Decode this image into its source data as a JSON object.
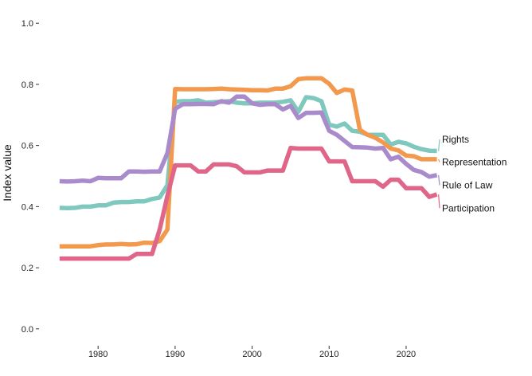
{
  "chart_data": {
    "type": "line",
    "title": "",
    "xlabel": "",
    "ylabel": "Index value",
    "xlim": [
      1974.5,
      2035
    ],
    "ylim": [
      -0.05,
      1.05
    ],
    "x_ticks": [
      1980,
      1990,
      2000,
      2010,
      2020
    ],
    "y_ticks": [
      0.0,
      0.2,
      0.4,
      0.6,
      0.8,
      1.0
    ],
    "y_tick_labels": [
      "0.0",
      "0.2",
      "0.4",
      "0.6",
      "0.8",
      "1.0"
    ],
    "grid": false,
    "legend": "direct labels at line ends (right)",
    "x": [
      1975,
      1976,
      1977,
      1978,
      1979,
      1980,
      1981,
      1982,
      1983,
      1984,
      1985,
      1986,
      1987,
      1988,
      1989,
      1990,
      1991,
      1992,
      1993,
      1994,
      1995,
      1996,
      1997,
      1998,
      1999,
      2000,
      2001,
      2002,
      2003,
      2004,
      2005,
      2006,
      2007,
      2008,
      2009,
      2010,
      2011,
      2012,
      2013,
      2014,
      2015,
      2016,
      2017,
      2018,
      2019,
      2020,
      2021,
      2022,
      2023,
      2024
    ],
    "series": [
      {
        "name": "Rights",
        "color": "#7ec8bd",
        "values": [
          0.396,
          0.395,
          0.396,
          0.4,
          0.4,
          0.404,
          0.404,
          0.413,
          0.415,
          0.415,
          0.417,
          0.417,
          0.425,
          0.43,
          0.47,
          0.743,
          0.745,
          0.745,
          0.748,
          0.74,
          0.742,
          0.743,
          0.745,
          0.74,
          0.738,
          0.738,
          0.74,
          0.74,
          0.74,
          0.743,
          0.748,
          0.71,
          0.758,
          0.755,
          0.745,
          0.668,
          0.662,
          0.672,
          0.648,
          0.645,
          0.635,
          0.635,
          0.635,
          0.603,
          0.612,
          0.607,
          0.596,
          0.588,
          0.583,
          0.582
        ]
      },
      {
        "name": "Representation",
        "color": "#f2994e",
        "values": [
          0.27,
          0.27,
          0.27,
          0.27,
          0.27,
          0.274,
          0.276,
          0.276,
          0.278,
          0.276,
          0.277,
          0.282,
          0.281,
          0.287,
          0.325,
          0.785,
          0.784,
          0.784,
          0.784,
          0.784,
          0.785,
          0.786,
          0.784,
          0.783,
          0.782,
          0.781,
          0.781,
          0.78,
          0.786,
          0.786,
          0.794,
          0.817,
          0.82,
          0.82,
          0.82,
          0.802,
          0.772,
          0.783,
          0.78,
          0.651,
          0.635,
          0.625,
          0.61,
          0.59,
          0.584,
          0.567,
          0.565,
          0.555,
          0.555,
          0.555
        ]
      },
      {
        "name": "Rule of Law",
        "color": "#a98bcb",
        "values": [
          0.483,
          0.482,
          0.483,
          0.485,
          0.483,
          0.494,
          0.493,
          0.493,
          0.493,
          0.515,
          0.515,
          0.514,
          0.515,
          0.515,
          0.575,
          0.72,
          0.735,
          0.735,
          0.736,
          0.736,
          0.735,
          0.745,
          0.74,
          0.76,
          0.76,
          0.738,
          0.733,
          0.735,
          0.735,
          0.718,
          0.73,
          0.69,
          0.707,
          0.707,
          0.708,
          0.648,
          0.635,
          0.615,
          0.595,
          0.594,
          0.593,
          0.59,
          0.592,
          0.555,
          0.563,
          0.54,
          0.52,
          0.513,
          0.498,
          0.503
        ]
      },
      {
        "name": "Participation",
        "color": "#df6688",
        "values": [
          0.23,
          0.23,
          0.23,
          0.23,
          0.23,
          0.23,
          0.23,
          0.23,
          0.23,
          0.23,
          0.245,
          0.245,
          0.245,
          0.325,
          0.435,
          0.535,
          0.535,
          0.535,
          0.515,
          0.515,
          0.538,
          0.538,
          0.538,
          0.532,
          0.512,
          0.512,
          0.512,
          0.518,
          0.518,
          0.518,
          0.592,
          0.59,
          0.59,
          0.59,
          0.59,
          0.548,
          0.548,
          0.548,
          0.483,
          0.483,
          0.483,
          0.483,
          0.465,
          0.488,
          0.488,
          0.46,
          0.46,
          0.46,
          0.432,
          0.44
        ]
      }
    ],
    "label_positions_value": [
      {
        "name": "Rights",
        "label_y": 0.62
      },
      {
        "name": "Representation",
        "label_y": 0.545
      },
      {
        "name": "Rule of Law",
        "label_y": 0.47
      },
      {
        "name": "Participation",
        "label_y": 0.395
      }
    ]
  }
}
